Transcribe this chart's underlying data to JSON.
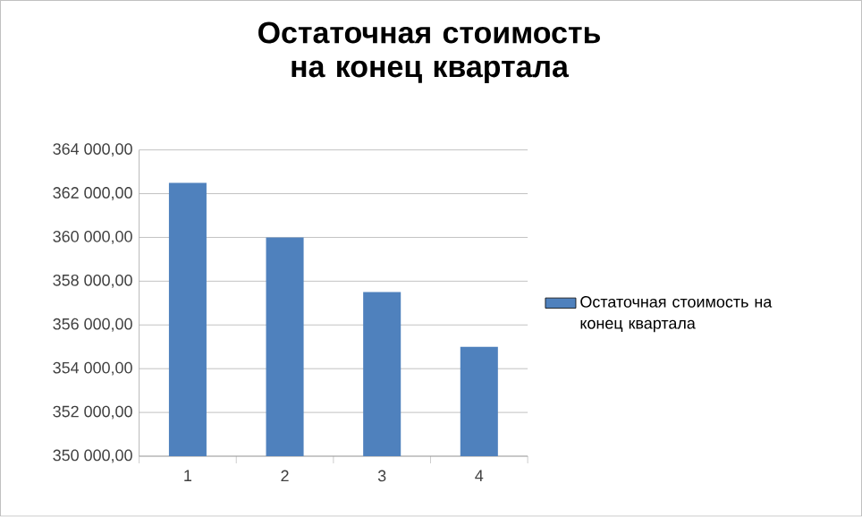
{
  "chart_data": {
    "type": "bar",
    "title": "Остаточная стоимость на конец квартала",
    "categories": [
      "1",
      "2",
      "3",
      "4"
    ],
    "series": [
      {
        "name": "Остаточная стоимость на конец квартала",
        "color": "#4f81bd",
        "values": [
          362500,
          360000,
          357500,
          355000
        ]
      }
    ],
    "ylim": [
      350000,
      364000
    ],
    "yticks": [
      {
        "value": 350000,
        "label": "350 000,00"
      },
      {
        "value": 352000,
        "label": "352 000,00"
      },
      {
        "value": 354000,
        "label": "354 000,00"
      },
      {
        "value": 356000,
        "label": "356 000,00"
      },
      {
        "value": 358000,
        "label": "358 000,00"
      },
      {
        "value": 360000,
        "label": "360 000,00"
      },
      {
        "value": 362000,
        "label": "362 000,00"
      },
      {
        "value": 364000,
        "label": "364 000,00"
      }
    ],
    "grid": "y",
    "legend": "right"
  }
}
